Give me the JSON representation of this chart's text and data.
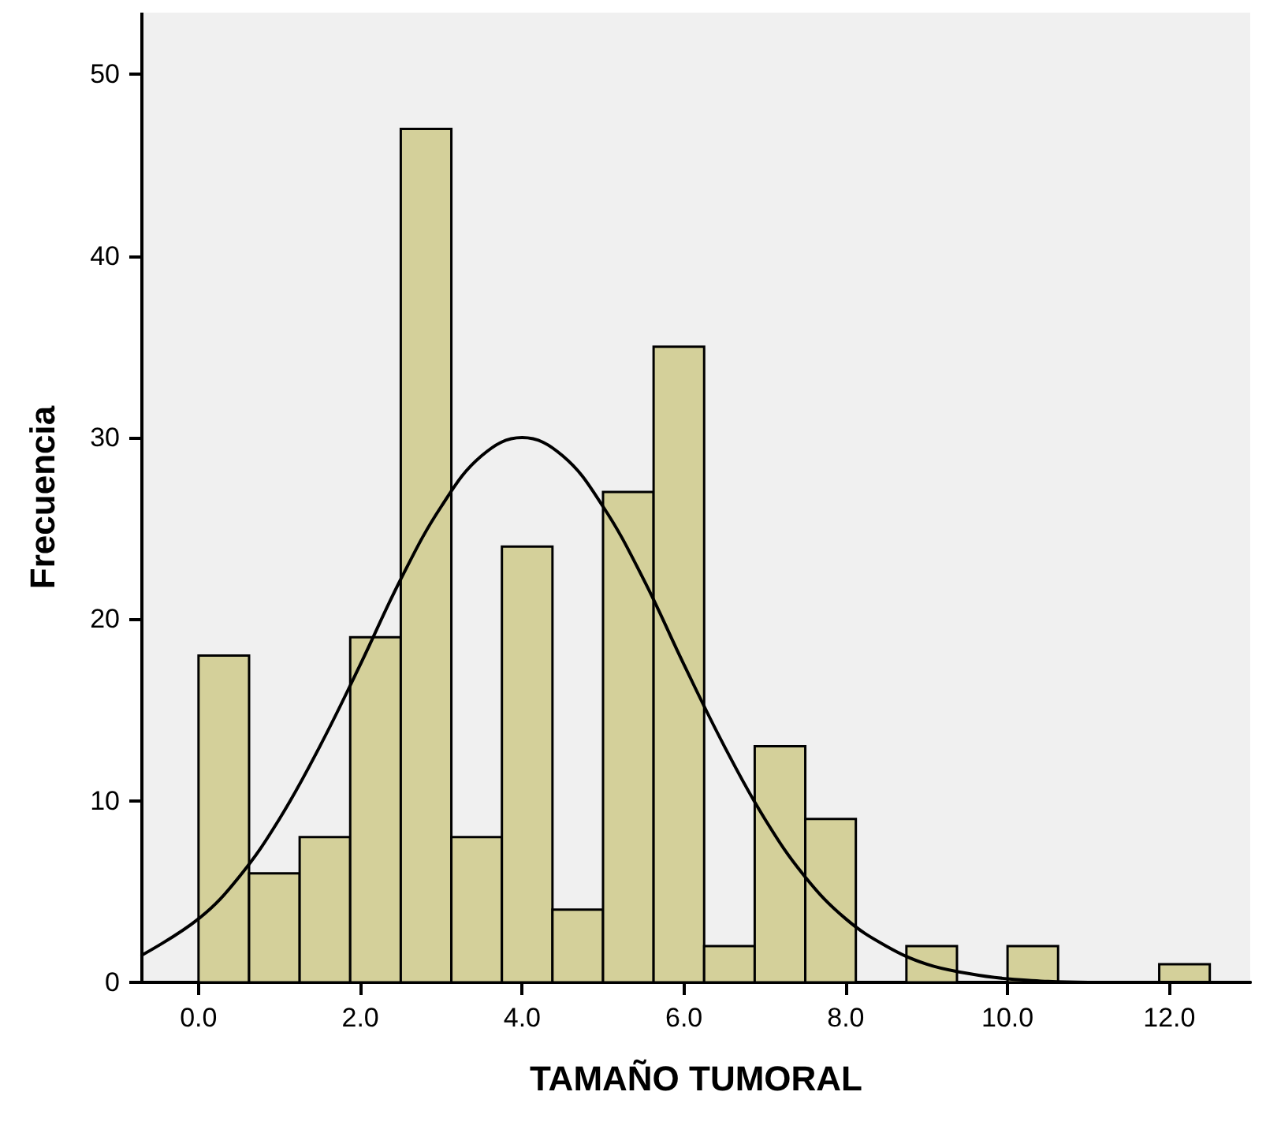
{
  "chart_data": {
    "type": "histogram",
    "xlabel": "TAMAÑO TUMORAL",
    "ylabel": "Frecuencia",
    "color": "#d4d09a",
    "bins": [
      0,
      0.625,
      1.25,
      1.875,
      2.5,
      3.125,
      3.75,
      4.375,
      5,
      5.625,
      6.25,
      6.875,
      7.5,
      8.125,
      8.75,
      9.375,
      10,
      10.625,
      11.25,
      11.875,
      12.5
    ],
    "values": [
      18,
      6,
      8,
      19,
      47,
      8,
      24,
      4,
      27,
      35,
      2,
      13,
      9,
      0,
      2,
      0,
      2,
      0,
      0,
      1
    ],
    "series": [
      {
        "type": "line",
        "color": "#000000",
        "x": [
          -0.7,
          0,
          0.5,
          1,
          1.5,
          2,
          2.5,
          3,
          3.5,
          4,
          4.5,
          5,
          5.5,
          6,
          6.5,
          7,
          7.5,
          8,
          8.5,
          9,
          9.5,
          10,
          11,
          12,
          13
        ],
        "values": [
          1.5,
          3.5,
          5.8,
          9.0,
          13.0,
          17.5,
          22.2,
          26.2,
          29.0,
          30,
          29.0,
          26.2,
          22.2,
          17.5,
          13.0,
          9.0,
          5.8,
          3.5,
          2.0,
          1.0,
          0.5,
          0.2,
          0.0,
          0.0,
          0.0
        ]
      }
    ],
    "marker": "none",
    "line_style": "solid",
    "grid": false,
    "xlim": [
      -0.7,
      13
    ],
    "xticks": [
      {
        "value": 0,
        "label": "0.0"
      },
      {
        "value": 2,
        "label": "2.0"
      },
      {
        "value": 4,
        "label": "4.0"
      },
      {
        "value": 6,
        "label": "6.0"
      },
      {
        "value": 8,
        "label": "8.0"
      },
      {
        "value": 10,
        "label": "10.0"
      },
      {
        "value": 12,
        "label": "12.0"
      }
    ],
    "ylim": [
      0,
      53.4
    ],
    "yticks": [
      0,
      10,
      20,
      30,
      40,
      50
    ]
  }
}
